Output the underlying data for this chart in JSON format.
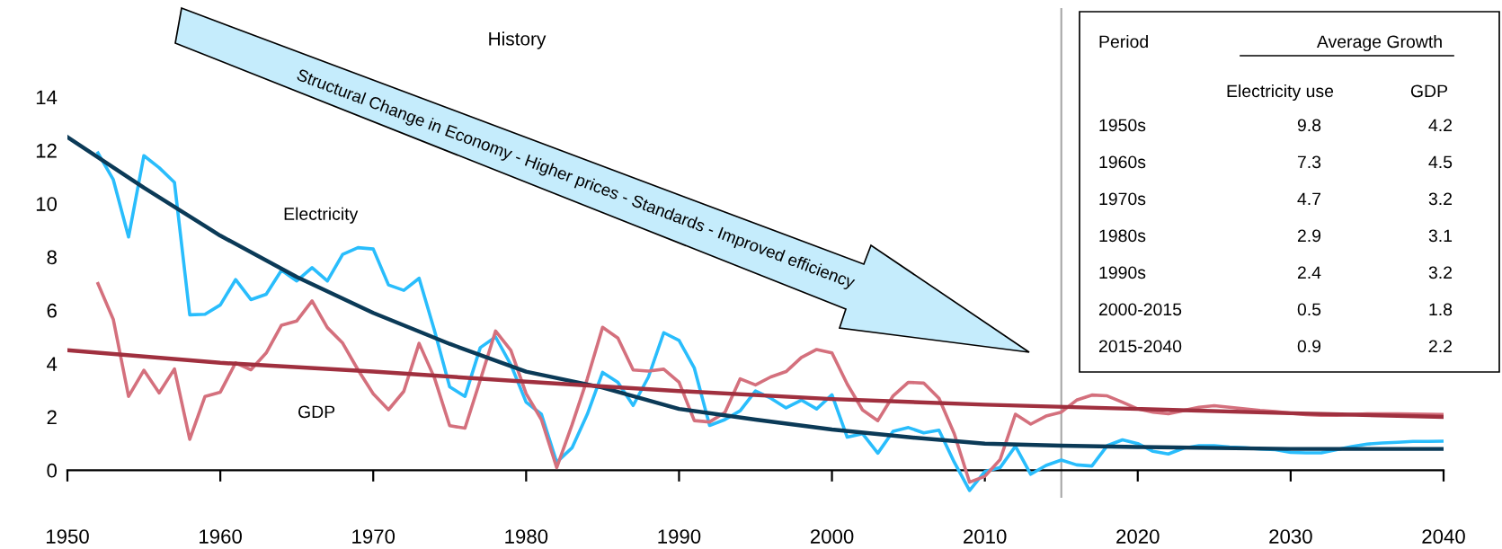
{
  "chart_data": {
    "type": "line",
    "x": [
      1952,
      1953,
      1954,
      1955,
      1956,
      1957,
      1958,
      1959,
      1960,
      1961,
      1962,
      1963,
      1964,
      1965,
      1966,
      1967,
      1968,
      1969,
      1970,
      1971,
      1972,
      1973,
      1974,
      1975,
      1976,
      1977,
      1978,
      1979,
      1980,
      1981,
      1982,
      1983,
      1984,
      1985,
      1986,
      1987,
      1988,
      1989,
      1990,
      1991,
      1992,
      1993,
      1994,
      1995,
      1996,
      1997,
      1998,
      1999,
      2000,
      2001,
      2002,
      2003,
      2004,
      2005,
      2006,
      2007,
      2008,
      2009,
      2010,
      2011,
      2012,
      2013,
      2014,
      2015,
      2016,
      2017,
      2018,
      2019,
      2020,
      2021,
      2022,
      2023,
      2024,
      2025,
      2026,
      2027,
      2028,
      2029,
      2030,
      2031,
      2032,
      2033,
      2034,
      2035,
      2036,
      2037,
      2038,
      2039,
      2040
    ],
    "series": [
      {
        "name": "Electricity",
        "color": "#29bdfc",
        "values": [
          11.9,
          10.9,
          8.75,
          11.8,
          11.35,
          10.8,
          5.83,
          5.85,
          6.2,
          7.15,
          6.4,
          6.6,
          7.5,
          7.1,
          7.6,
          7.1,
          8.1,
          8.35,
          8.3,
          6.95,
          6.75,
          7.2,
          5.25,
          3.13,
          2.77,
          4.6,
          5.0,
          3.96,
          2.55,
          2.1,
          0.3,
          0.84,
          2.1,
          3.67,
          3.3,
          2.43,
          3.5,
          5.16,
          4.87,
          3.83,
          1.68,
          1.9,
          2.23,
          2.97,
          2.7,
          2.34,
          2.63,
          2.3,
          2.83,
          1.24,
          1.37,
          0.64,
          1.46,
          1.6,
          1.4,
          1.5,
          0.3,
          -0.76,
          -0.05,
          0.1,
          0.9,
          -0.15,
          0.18,
          0.38,
          0.2,
          0.16,
          0.92,
          1.14,
          1.0,
          0.71,
          0.61,
          0.83,
          0.92,
          0.92,
          0.87,
          0.84,
          0.8,
          0.77,
          0.67,
          0.65,
          0.65,
          0.77,
          0.89,
          0.98,
          1.02,
          1.05,
          1.08,
          1.08,
          1.09
        ]
      },
      {
        "name": "GDP",
        "color": "#d4707d",
        "values": [
          7.0,
          5.66,
          2.77,
          3.75,
          2.9,
          3.8,
          1.16,
          2.77,
          2.93,
          4.03,
          3.77,
          4.4,
          5.44,
          5.6,
          6.35,
          5.35,
          4.77,
          3.77,
          2.87,
          2.27,
          2.96,
          4.76,
          3.47,
          1.67,
          1.58,
          3.38,
          5.22,
          4.5,
          2.87,
          1.9,
          0.1,
          1.7,
          3.43,
          5.36,
          4.96,
          3.76,
          3.72,
          3.79,
          3.3,
          1.86,
          1.81,
          2.17,
          3.43,
          3.2,
          3.5,
          3.7,
          4.23,
          4.53,
          4.4,
          3.23,
          2.26,
          1.86,
          2.79,
          3.3,
          3.27,
          2.7,
          1.37,
          -0.45,
          -0.23,
          0.4,
          2.1,
          1.73,
          2.03,
          2.18,
          2.63,
          2.82,
          2.79,
          2.55,
          2.3,
          2.18,
          2.12,
          2.24,
          2.36,
          2.42,
          2.36,
          2.3,
          2.24,
          2.2,
          2.14,
          2.09,
          2.06,
          2.06,
          2.09,
          2.12,
          2.12,
          2.12,
          2.11,
          2.1,
          2.09
        ]
      },
      {
        "color": "#0b3a57",
        "x": [
          1950,
          1955,
          1960,
          1965,
          1970,
          1975,
          1980,
          1985,
          1990,
          1995,
          2000,
          2005,
          2010,
          2015,
          2020,
          2030,
          2040
        ],
        "values": [
          12.5,
          10.6,
          8.8,
          7.25,
          5.9,
          4.74,
          3.7,
          3.1,
          2.3,
          1.9,
          1.53,
          1.24,
          1.0,
          0.92,
          0.87,
          0.8,
          0.8
        ]
      },
      {
        "color": "#a0303f",
        "x": [
          1950,
          1960,
          1970,
          1980,
          1990,
          2000,
          2010,
          2020,
          2030,
          2040
        ],
        "values": [
          4.5,
          4.03,
          3.7,
          3.32,
          2.97,
          2.67,
          2.46,
          2.3,
          2.14,
          2.0
        ]
      }
    ],
    "xlim": [
      1950,
      2040
    ],
    "xticks": [
      1950,
      1960,
      1970,
      1980,
      1990,
      2000,
      2010,
      2020,
      2030,
      2040
    ],
    "ylim": [
      -1,
      14
    ],
    "yticks": [
      0,
      2,
      4,
      6,
      8,
      10,
      12,
      14
    ],
    "ref_lines": [
      {
        "axis": "x",
        "value": 2015,
        "color": "#a6a6a6"
      }
    ],
    "annotations": [
      "History",
      "Structural Change in Economy - Higher prices - Standards - Improved efficiency",
      "Period",
      "Average Growth",
      "Electricity use",
      "GDP",
      "1950s",
      "9.8",
      "4.2",
      "1960s",
      "7.3",
      "4.5",
      "1970s",
      "4.7",
      "3.2",
      "1980s",
      "2.9",
      "3.1",
      "1990s",
      "2.4",
      "3.2",
      "2000-2015",
      "0.5",
      "1.8",
      "2015-2040",
      "0.9",
      "2.2"
    ]
  }
}
